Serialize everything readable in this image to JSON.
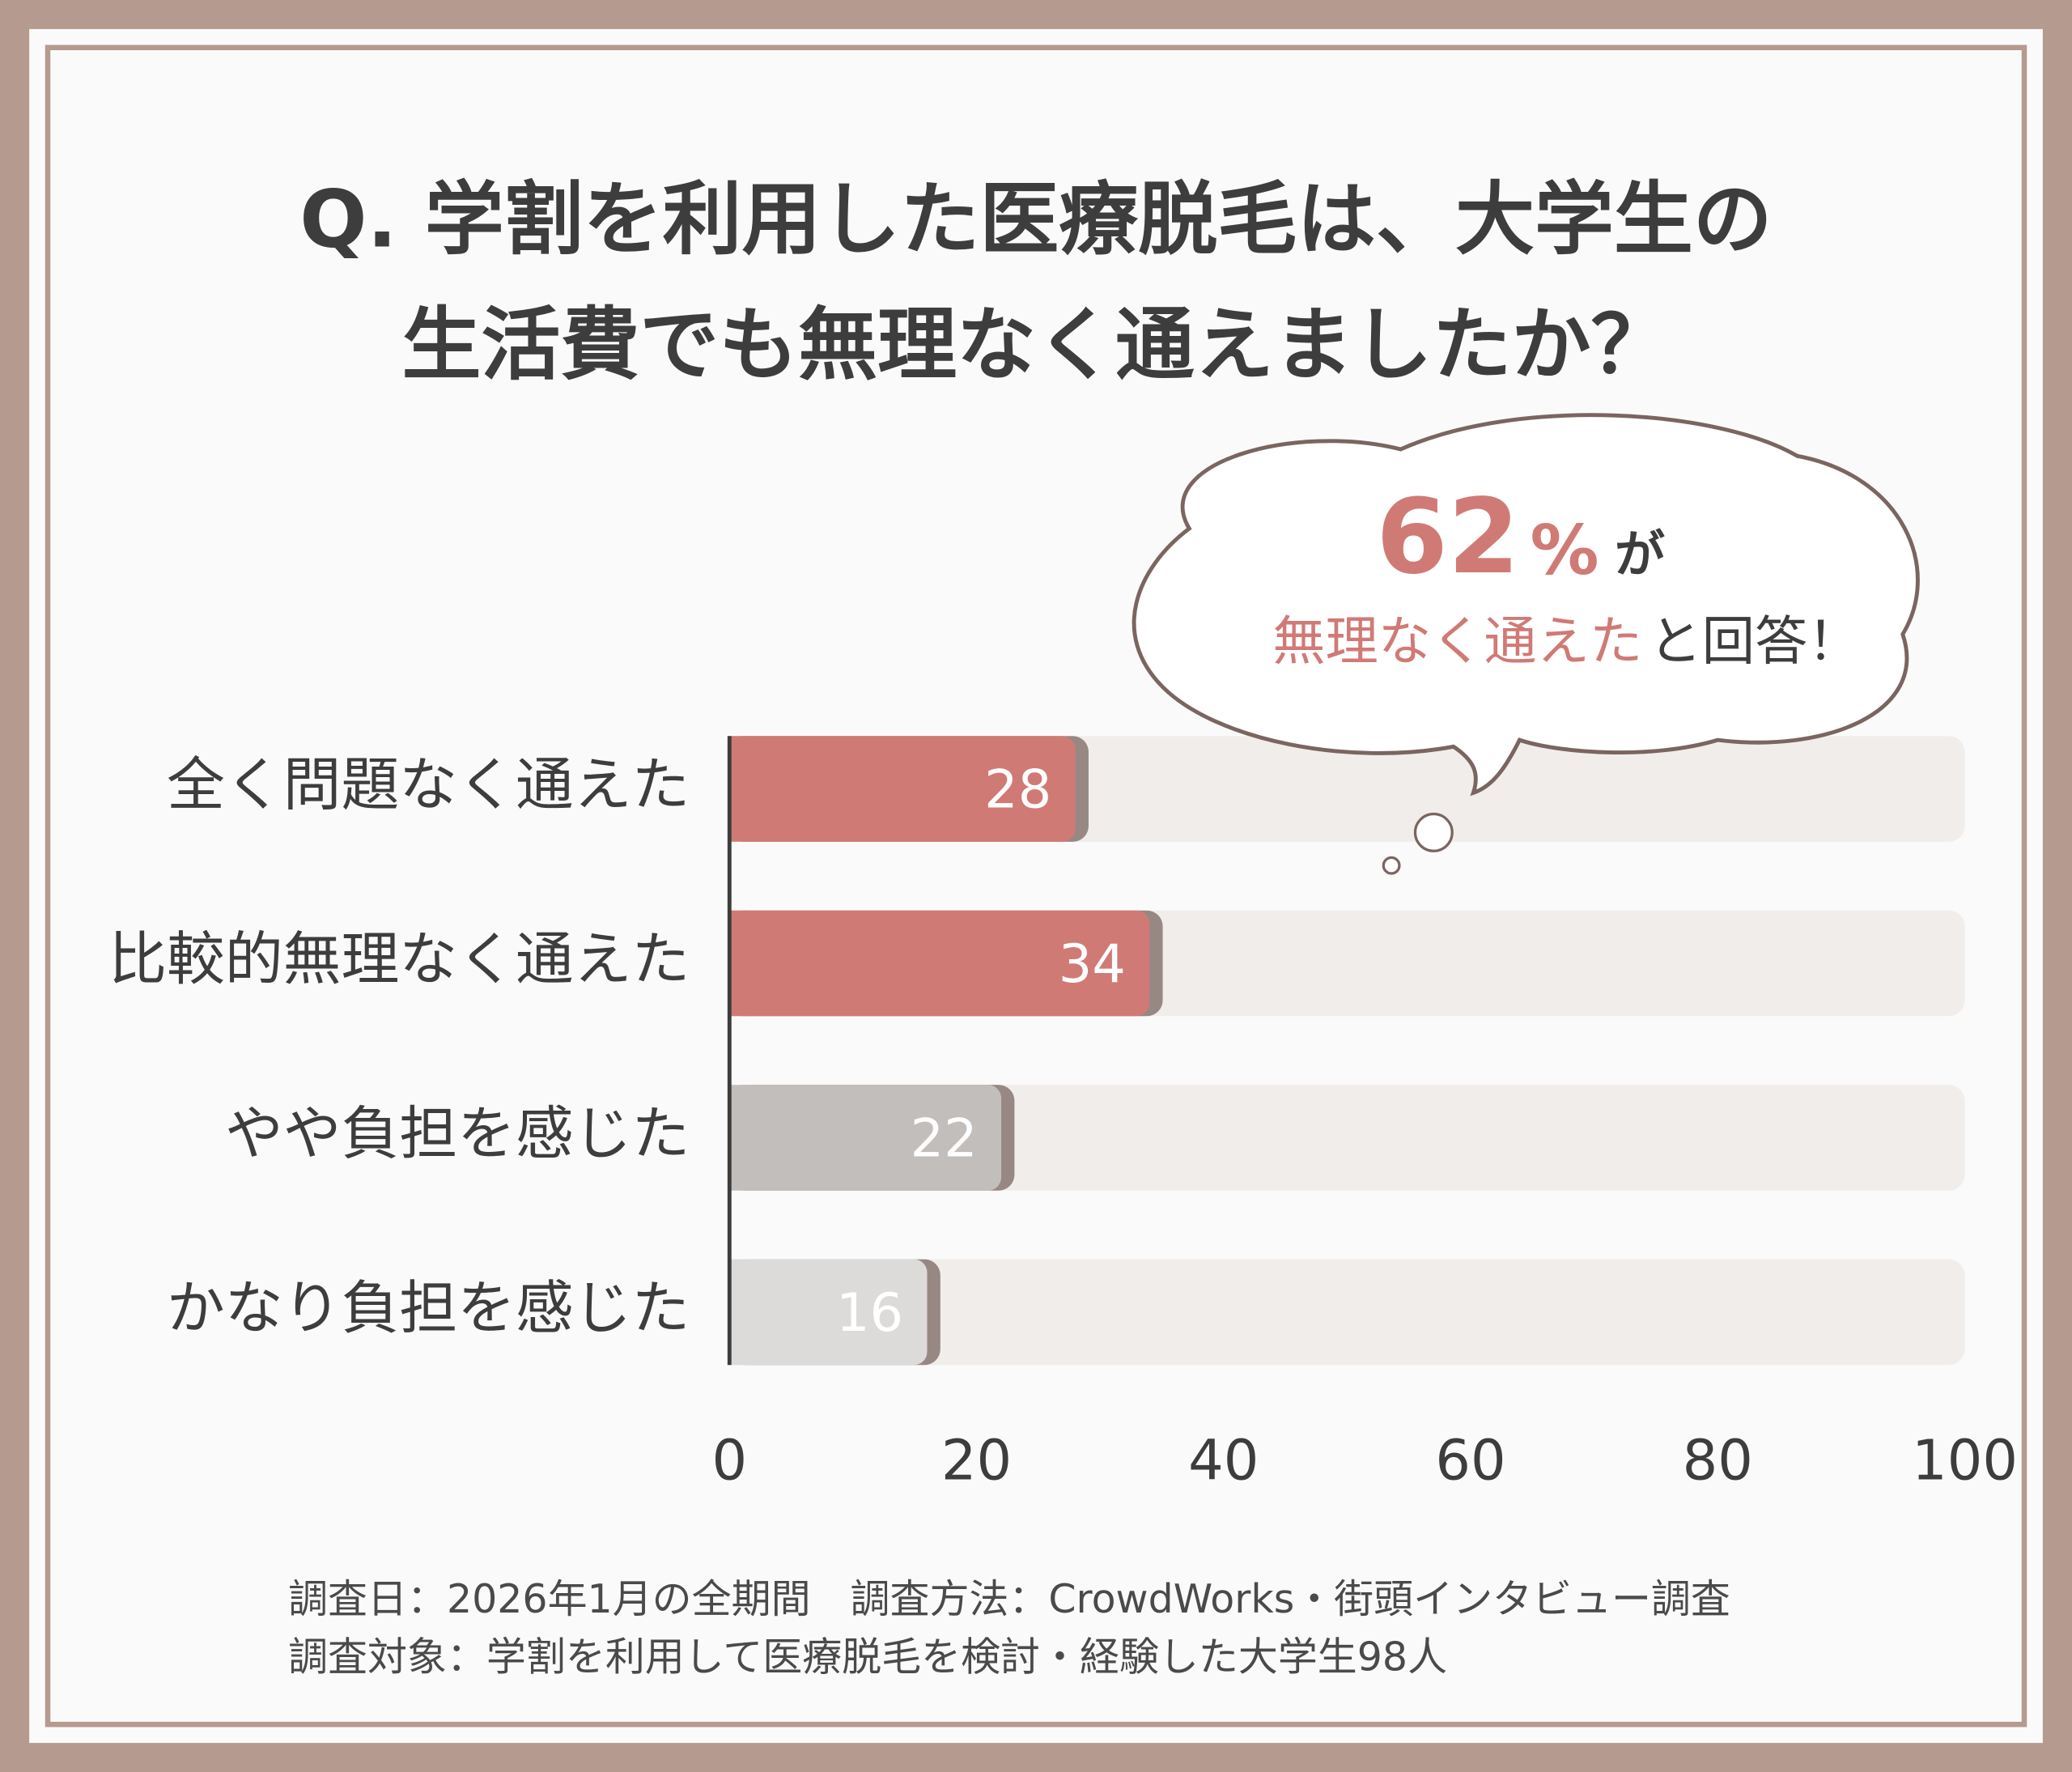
{
  "chart_data": {
    "type": "bar",
    "orientation": "horizontal",
    "title": [
      "Q. 学割を利用した医療脱毛は、大学生の",
      "生活費でも無理なく通えましたか？"
    ],
    "categories": [
      "全く問題なく通えた",
      "比較的無理なく通えた",
      "やや負担を感じた",
      "かなり負担を感じた"
    ],
    "values": [
      28,
      34,
      22,
      16
    ],
    "colors": [
      "#d07a76",
      "#d07a76",
      "#c2bebc",
      "#dddbda"
    ],
    "xlim": [
      0,
      100
    ],
    "xticks": [
      0,
      20,
      40,
      60,
      80,
      100
    ],
    "callout": {
      "number": 62,
      "unit": "%",
      "particle": "が",
      "highlight": "無理なく通えた",
      "rest": "と回答！"
    },
    "notes": [
      "調査日：2026年1月の全期間　調査方法：CrowdWorks・街頭インタビュー調査",
      "調査対象：学割を利用して医療脱毛を検討・経験した大学生98人"
    ]
  }
}
